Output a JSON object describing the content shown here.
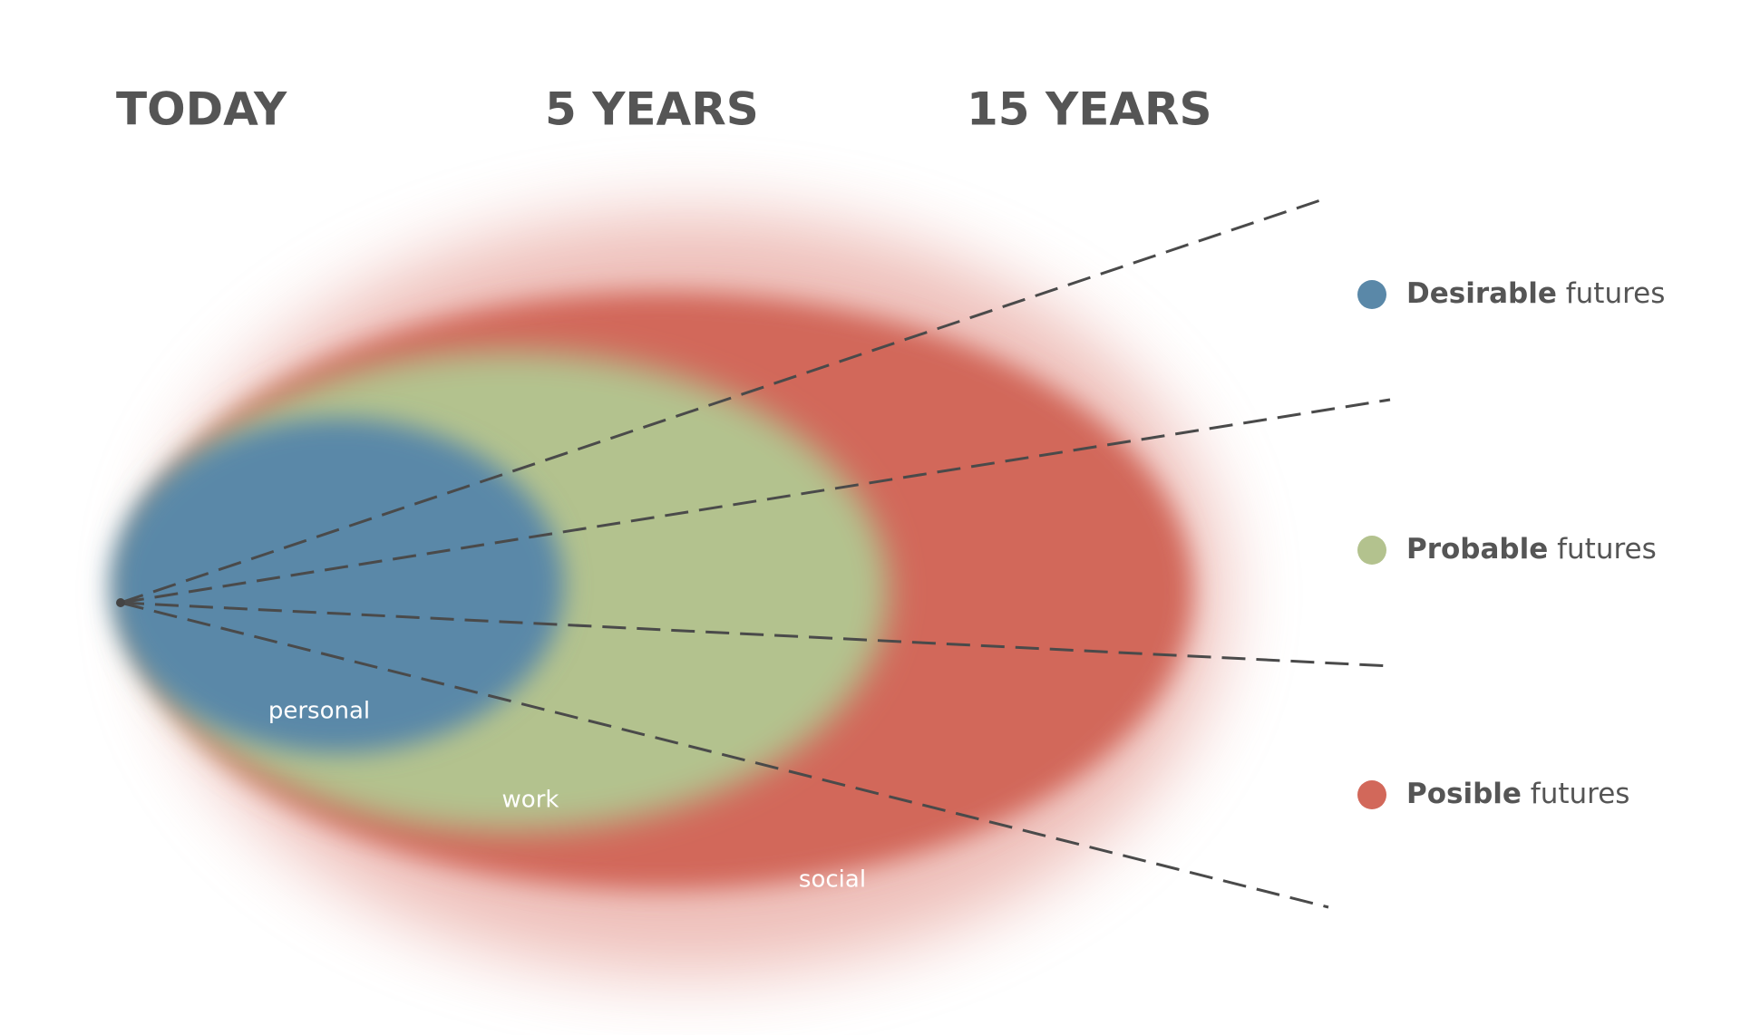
{
  "header": {
    "columns": [
      "TODAY",
      "5 YEARS",
      "15 YEARS"
    ]
  },
  "regions": [
    {
      "label": "personal"
    },
    {
      "label": "work"
    },
    {
      "label": "social"
    }
  ],
  "legend": [
    {
      "bold": "Desirable",
      "text": "futures"
    },
    {
      "bold": "Probable",
      "text": "futures"
    },
    {
      "bold": "Posible",
      "text": "futures"
    }
  ]
}
